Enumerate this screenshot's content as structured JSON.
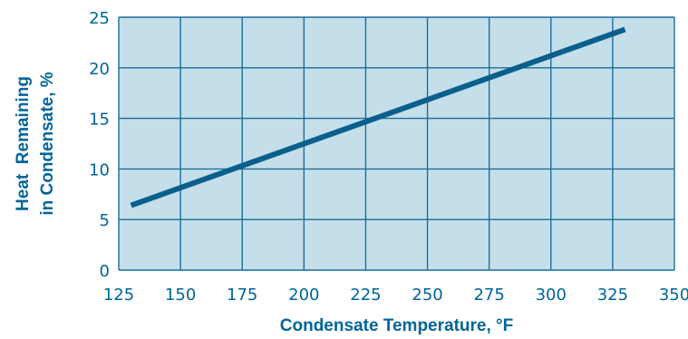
{
  "colors": {
    "plot_background": "#c5dfea",
    "grid": "#1b6f9a",
    "line": "#0b5f8c",
    "text": "#00659a"
  },
  "chart_data": {
    "type": "line",
    "title": "",
    "xlabel": "Condensate Temperature, °F",
    "ylabel_lines": [
      "Heat  Remaining",
      "in Condensate, %"
    ],
    "xlim": [
      125,
      350
    ],
    "ylim": [
      0,
      25
    ],
    "x_ticks": [
      125,
      150,
      175,
      200,
      225,
      250,
      275,
      300,
      325,
      350
    ],
    "y_ticks": [
      0,
      5,
      10,
      15,
      20,
      25
    ],
    "x_tick_labels": [
      "125",
      "150",
      "175",
      "200",
      "225",
      "250",
      "275",
      "300",
      "325",
      "350"
    ],
    "y_tick_labels": [
      "0",
      "5",
      "10",
      "15",
      "20",
      "25"
    ],
    "grid": true,
    "series": [
      {
        "x": [
          130,
          330
        ],
        "y": [
          6.4,
          23.8
        ]
      }
    ]
  }
}
